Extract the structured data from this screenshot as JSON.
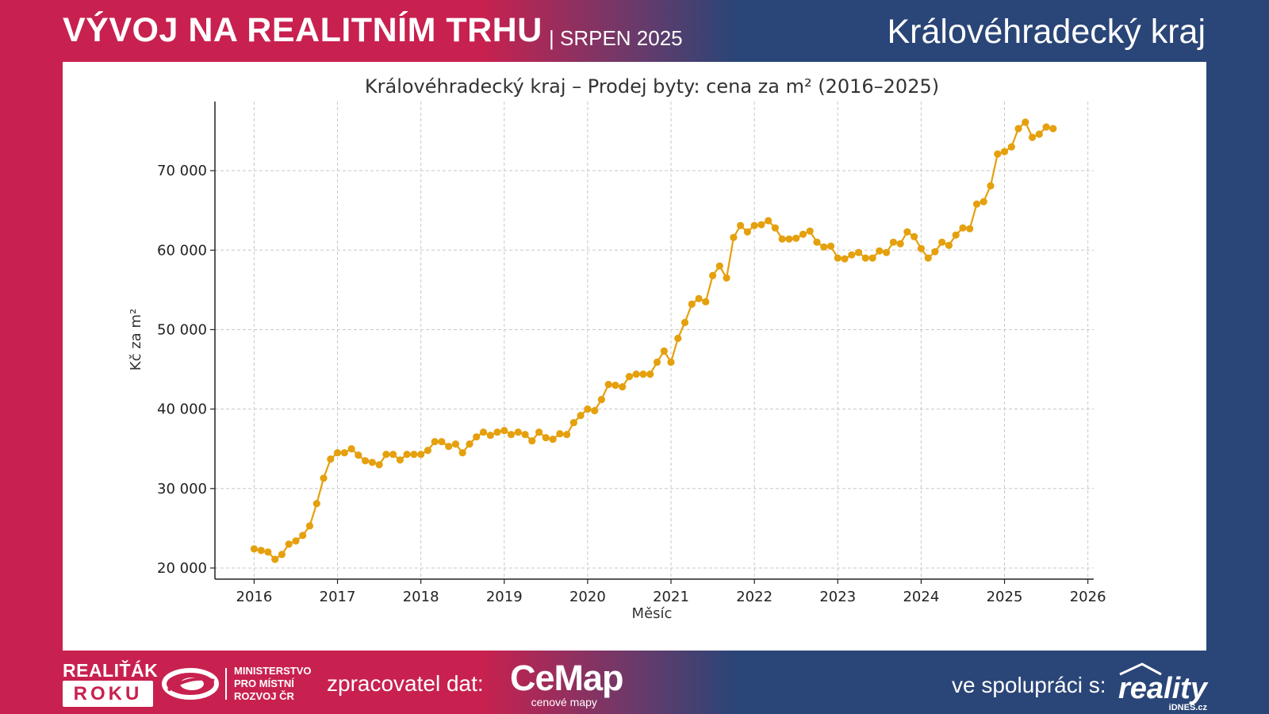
{
  "header": {
    "title": "VÝVOJ NA REALITNÍM TRHU",
    "subtitle": "| SRPEN 2025",
    "region": "Královéhradecký kraj"
  },
  "colors": {
    "left_band": "#c8214f",
    "right_band": "#2a4577",
    "series_line": "#e5a00d",
    "grid": "#c8c8c8"
  },
  "footer": {
    "brand_line1": "REALIŤÁK",
    "brand_line2": "ROKU",
    "ministry": "MINISTERSTVO PRO MÍSTNÍ ROZVOJ ČR",
    "processor_label": "zpracovatel dat:",
    "cemap_name": "CeMap",
    "cemap_sub": "cenové mapy",
    "collab_label": "ve spolupráci s:",
    "reality_name": "reality",
    "reality_sub": "iDNES.cz"
  },
  "chart_data": {
    "type": "line",
    "title": "Královéhradecký kraj – Prodej byty: cena za m² (2016–2025)",
    "xlabel": "Měsíc",
    "ylabel": "Kč za m²",
    "xlim": [
      2015.53,
      2026.07
    ],
    "ylim": [
      18600,
      78700
    ],
    "x_ticks": [
      2016,
      2017,
      2018,
      2019,
      2020,
      2021,
      2022,
      2023,
      2024,
      2025,
      2026
    ],
    "y_ticks": [
      20000,
      30000,
      40000,
      50000,
      60000,
      70000
    ],
    "y_tick_labels": [
      "20 000",
      "30 000",
      "40 000",
      "50 000",
      "60 000",
      "70 000"
    ],
    "grid": true,
    "marker": "circle",
    "series": [
      {
        "start": "2016-01",
        "values": [
          22400,
          22200,
          22000,
          21100,
          21700,
          23000,
          23400,
          24100,
          25300,
          28100,
          31300,
          33700,
          34500,
          34500,
          35000,
          34200,
          33500,
          33300,
          33000,
          34300,
          34300,
          33600,
          34300,
          34300,
          34300,
          34800,
          35900,
          35900,
          35300,
          35600,
          34500,
          35600,
          36500,
          37100,
          36700,
          37100,
          37300,
          36800,
          37100,
          36800,
          36000,
          37100,
          36400,
          36200,
          36900,
          36800,
          38300,
          39200,
          40000,
          39800,
          41200,
          43100,
          43000,
          42800,
          44100,
          44400,
          44400,
          44400,
          45900,
          47300,
          45900,
          48900,
          50900,
          53200,
          53900,
          53500,
          56800,
          58000,
          56500,
          61600,
          63100,
          62300,
          63100,
          63200,
          63700,
          62800,
          61400,
          61400,
          61500,
          62000,
          62400,
          61000,
          60400,
          60500,
          59000,
          58900,
          59400,
          59700,
          59000,
          59000,
          59900,
          59700,
          61000,
          60800,
          62300,
          61700,
          60200,
          59000,
          59800,
          61000,
          60600,
          61900,
          62800,
          62700,
          65800,
          66100,
          68100,
          72100,
          72400,
          73000,
          75300,
          76100,
          74200,
          74600,
          75500,
          75300
        ]
      }
    ]
  }
}
